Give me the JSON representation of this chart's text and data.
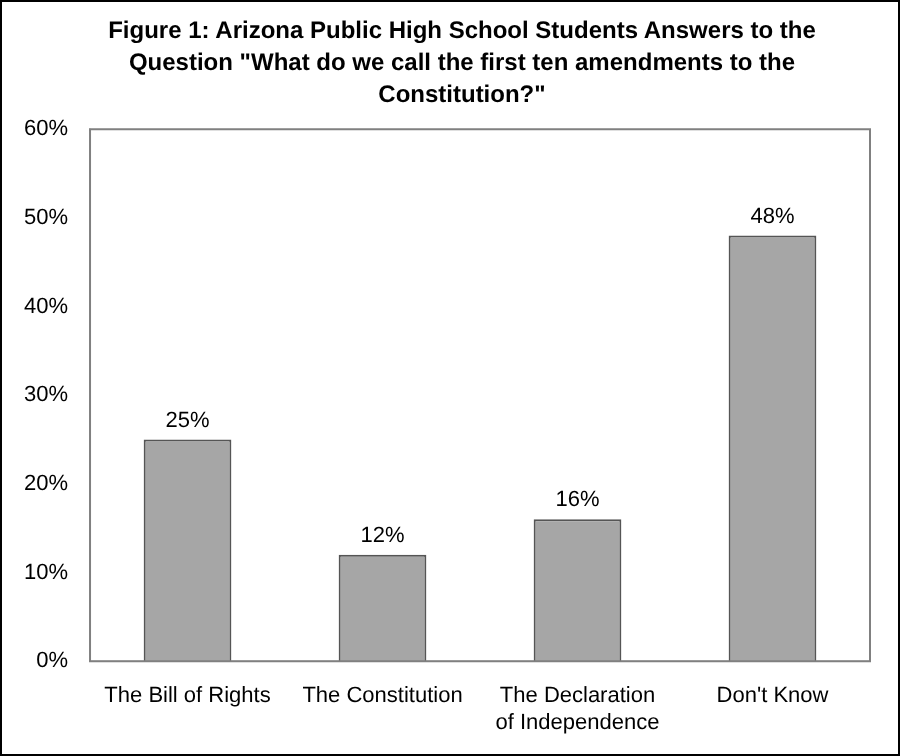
{
  "chart_data": {
    "type": "bar",
    "title": "Figure 1: Arizona Public High School Students Answers to the Question \"What do we call the first ten amendments to the Constitution?\"",
    "categories": [
      "The Bill of Rights",
      "The Constitution",
      "The Declaration of Independence",
      "Don't Know"
    ],
    "values": [
      25,
      12,
      16,
      48
    ],
    "value_labels": [
      "25%",
      "12%",
      "16%",
      "48%"
    ],
    "color": "#a6a6a6",
    "ylim": [
      0,
      60
    ],
    "yticks": [
      {
        "value": 0,
        "label": "0%"
      },
      {
        "value": 10,
        "label": "10%"
      },
      {
        "value": 20,
        "label": "20%"
      },
      {
        "value": 30,
        "label": "30%"
      },
      {
        "value": 40,
        "label": "40%"
      },
      {
        "value": 50,
        "label": "50%"
      },
      {
        "value": 60,
        "label": "60%"
      }
    ],
    "grid": false,
    "legend": false
  }
}
